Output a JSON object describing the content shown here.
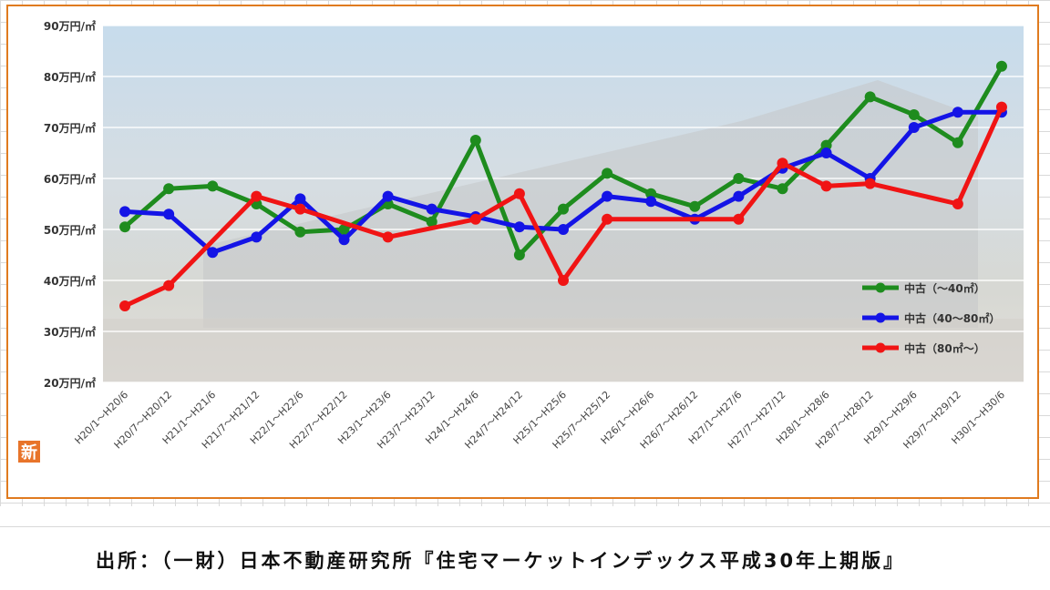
{
  "source_note": "出所：（一財）日本不動産研究所『住宅マーケットインデックス平成30年上期版』",
  "logo_text": "新",
  "colors": {
    "frame": "#e07b1f",
    "plot_bg": "#c9d9e6",
    "gridline": "#ffffff",
    "tick_text": "#333333"
  },
  "chart_data": {
    "type": "line",
    "title": "",
    "xlabel": "",
    "ylabel": "",
    "ylim": [
      20,
      90
    ],
    "yticks": [
      20,
      30,
      40,
      50,
      60,
      70,
      80,
      90
    ],
    "ytick_labels": [
      "20万円/㎡",
      "30万円/㎡",
      "40万円/㎡",
      "50万円/㎡",
      "60万円/㎡",
      "70万円/㎡",
      "80万円/㎡",
      "90万円/㎡"
    ],
    "grid": true,
    "legend_position": "right-bottom",
    "categories": [
      "H20/1～H20/6",
      "H20/7～H20/12",
      "H21/1～H21/6",
      "H21/7～H21/12",
      "H22/1～H22/6",
      "H22/7～H22/12",
      "H23/1～H23/6",
      "H23/7～H23/12",
      "H24/1～H24/6",
      "H24/7～H24/12",
      "H25/1～H25/6",
      "H25/7～H25/12",
      "H26/1～H26/6",
      "H26/7～H26/12",
      "H27/1～H27/6",
      "H27/7～H27/12",
      "H28/1～H28/6",
      "H28/7～H28/12",
      "H29/1～H29/6",
      "H29/7～H29/12",
      "H30/1～H30/6"
    ],
    "series": [
      {
        "name": "中古（～40㎡）",
        "color": "#1e8c1e",
        "values": [
          50.5,
          58,
          58.5,
          55,
          49.5,
          50,
          55,
          51.5,
          67.5,
          45,
          54,
          61,
          57,
          54.5,
          60,
          58,
          66.5,
          76,
          72.5,
          67,
          82
        ]
      },
      {
        "name": "中古（40～80㎡）",
        "color": "#1414e6",
        "values": [
          53.5,
          53,
          45.5,
          48.5,
          56,
          48,
          56.5,
          54,
          52.5,
          50.5,
          50,
          56.5,
          55.5,
          52,
          56.5,
          62,
          65,
          60,
          70,
          73,
          73
        ]
      },
      {
        "name": "中古（80㎡～）",
        "color": "#f01414",
        "values": [
          35,
          39,
          null,
          56.5,
          54,
          null,
          48.5,
          null,
          52,
          57,
          40,
          52,
          null,
          null,
          52,
          63,
          58.5,
          59,
          null,
          55,
          74
        ]
      }
    ]
  }
}
